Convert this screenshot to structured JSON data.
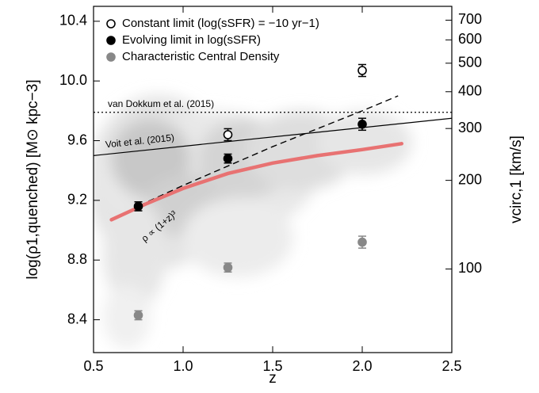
{
  "chart_data": {
    "type": "scatter",
    "xlabel": "z",
    "ylabel": "log(ρ1,quenched) [M⊙ kpc−3]",
    "y2label": "vcirc,1 [km/s]",
    "xlim": [
      0.5,
      2.5
    ],
    "ylim": [
      8.18,
      10.5
    ],
    "y2lim": [
      52,
      780
    ],
    "y2log": true,
    "xticks": [
      0.5,
      {
        "value": 1,
        "label": "1.0"
      },
      1.5,
      {
        "value": 2,
        "label": "2.0"
      },
      2.5
    ],
    "yticks": [
      8.4,
      8.8,
      9.2,
      9.6,
      {
        "value": 10,
        "label": "10.0"
      },
      10.4
    ],
    "y2ticks": [
      100,
      200,
      300,
      400,
      500,
      600,
      700
    ],
    "legend": "upper left",
    "series": [
      {
        "name": "Constant limit (log(sSFR) = −10 yr−1)",
        "color": "#000000",
        "marker": "open",
        "x": [
          1.25,
          2.0
        ],
        "values": [
          9.64,
          10.07
        ],
        "errors": [
          0.04,
          0.04
        ]
      },
      {
        "name": "Evolving limit in log(sSFR)",
        "color": "#000000",
        "marker": "filled",
        "x": [
          0.75,
          1.25,
          2.0
        ],
        "values": [
          9.16,
          9.48,
          9.71
        ],
        "errors": [
          0.03,
          0.03,
          0.04
        ]
      },
      {
        "name": "Characteristic Central Density",
        "color": "#888888",
        "marker": "filled",
        "x": [
          0.75,
          1.25,
          2.0
        ],
        "values": [
          8.43,
          8.75,
          8.92
        ],
        "errors": [
          0.03,
          0.03,
          0.04
        ]
      }
    ],
    "lines": [
      {
        "label": "van Dokkum et al. (2015)",
        "style": "dotted",
        "color": "#000000",
        "x": [
          0.5,
          2.5
        ],
        "values": [
          9.79,
          9.79
        ]
      },
      {
        "label": "Voit et al. (2015)",
        "style": "solid",
        "color": "#000000",
        "x": [
          0.5,
          2.5
        ],
        "values": [
          9.5,
          9.75
        ]
      },
      {
        "label": "ρ ∝ (1+z)³",
        "style": "dashed",
        "color": "#000000",
        "x": [
          0.6,
          0.8,
          1.0,
          1.25,
          1.5,
          1.75,
          2.0,
          2.2
        ],
        "values": [
          9.07,
          9.19,
          9.3,
          9.43,
          9.56,
          9.68,
          9.8,
          9.9
        ]
      },
      {
        "style": "thick",
        "color": "#e87272",
        "x": [
          0.6,
          0.8,
          1.0,
          1.25,
          1.5,
          1.75,
          2.0,
          2.22
        ],
        "values": [
          9.07,
          9.18,
          9.28,
          9.38,
          9.45,
          9.5,
          9.54,
          9.58
        ]
      }
    ]
  }
}
